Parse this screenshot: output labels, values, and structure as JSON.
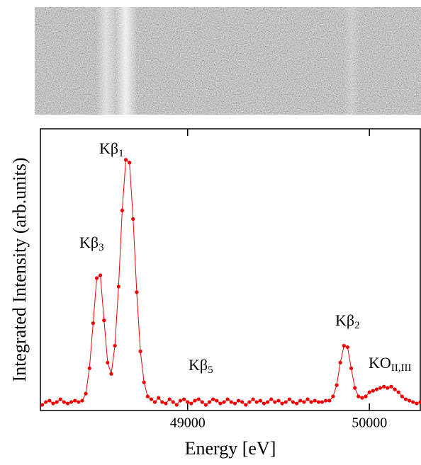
{
  "chart_data": {
    "type": "line",
    "x_label": "Energy [eV]",
    "y_label": "Integrated Intensity (arb.units)",
    "annotations": [
      {
        "text": "Kβ",
        "subscript": "1"
      },
      {
        "text": "Kβ",
        "subscript": "3"
      },
      {
        "text": "Kβ",
        "subscript": "5"
      },
      {
        "text": "Kβ",
        "subscript": "2"
      },
      {
        "text": "KO",
        "subscript": "II,III"
      }
    ],
    "color": "#ee0000",
    "xlim": [
      48190,
      50280
    ],
    "ylim": [
      0,
      100
    ],
    "xticks": [
      49000,
      50000
    ],
    "x": [
      48200,
      48220,
      48240,
      48260,
      48280,
      48300,
      48320,
      48340,
      48360,
      48380,
      48400,
      48420,
      48440,
      48460,
      48480,
      48500,
      48520,
      48540,
      48560,
      48580,
      48600,
      48620,
      48640,
      48660,
      48680,
      48700,
      48720,
      48740,
      48760,
      48780,
      48800,
      48820,
      48840,
      48860,
      48880,
      48900,
      48920,
      48940,
      48960,
      48980,
      49000,
      49020,
      49040,
      49060,
      49080,
      49100,
      49120,
      49140,
      49160,
      49180,
      49200,
      49220,
      49240,
      49260,
      49280,
      49300,
      49320,
      49340,
      49360,
      49380,
      49400,
      49420,
      49440,
      49460,
      49480,
      49500,
      49520,
      49540,
      49560,
      49580,
      49600,
      49620,
      49640,
      49660,
      49680,
      49700,
      49720,
      49740,
      49760,
      49780,
      49800,
      49820,
      49840,
      49860,
      49880,
      49900,
      49920,
      49940,
      49960,
      49980,
      50000,
      50020,
      50040,
      50060,
      50080,
      50100,
      50120,
      50140,
      50160,
      50180,
      50200,
      50220,
      50240,
      50260,
      50280
    ],
    "values": [
      2,
      3,
      3.5,
      2.5,
      3,
      4,
      3,
      2.5,
      3,
      3.5,
      3,
      3.5,
      6,
      15,
      31,
      47,
      48,
      32,
      17,
      13,
      23,
      44,
      71,
      89,
      88,
      68,
      42,
      21,
      10,
      5,
      4,
      3,
      4.5,
      3,
      2.5,
      4,
      3,
      2,
      3.5,
      4,
      3,
      2.5,
      3.5,
      4,
      3,
      2,
      3,
      4,
      3.5,
      2.5,
      3,
      4,
      3,
      2.5,
      3.5,
      3,
      2,
      3,
      4,
      3,
      3.5,
      2.5,
      3,
      4,
      3,
      3.5,
      2.5,
      3,
      4,
      3,
      2.5,
      3.5,
      3,
      4,
      3,
      3.5,
      3,
      3,
      3.5,
      3.5,
      5,
      9,
      17,
      23,
      22.5,
      15,
      8,
      5,
      4.5,
      5,
      6.5,
      7,
      7.5,
      8,
      8.5,
      8,
      8.5,
      7.5,
      6.5,
      5,
      4,
      3.5,
      3,
      2.5,
      3
    ]
  }
}
